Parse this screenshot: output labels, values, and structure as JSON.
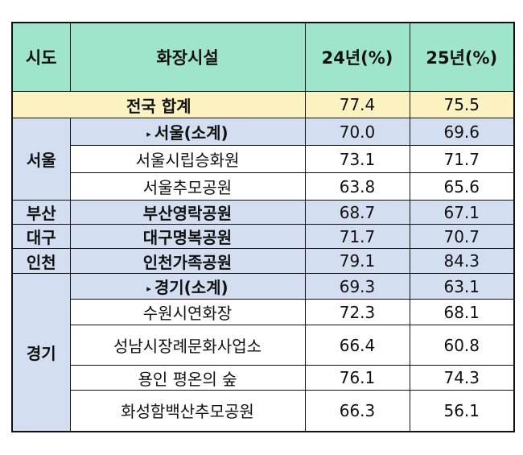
{
  "headers": {
    "region": "시도",
    "facility": "화장시설",
    "y24": "24년(%)",
    "y25": "25년(%)"
  },
  "total": {
    "label": "전국 합계",
    "y24": "77.4",
    "y25": "75.5"
  },
  "regions": {
    "seoul": {
      "name": "서울",
      "subtotal": {
        "label": "서울(소계)",
        "y24": "70.0",
        "y25": "69.6"
      },
      "rows": [
        {
          "label": "서울시립승화원",
          "y24": "73.1",
          "y25": "71.7"
        },
        {
          "label": "서울추모공원",
          "y24": "63.8",
          "y25": "65.6"
        }
      ]
    },
    "busan": {
      "name": "부산",
      "label": "부산영락공원",
      "y24": "68.7",
      "y25": "67.1"
    },
    "daegu": {
      "name": "대구",
      "label": "대구명복공원",
      "y24": "71.7",
      "y25": "70.7"
    },
    "incheon": {
      "name": "인천",
      "label": "인천가족공원",
      "y24": "79.1",
      "y25": "84.3"
    },
    "gyeonggi": {
      "name": "경기",
      "subtotal": {
        "label": "경기(소계)",
        "y24": "69.3",
        "y25": "63.1"
      },
      "rows": [
        {
          "label": "수원시연화장",
          "y24": "72.3",
          "y25": "68.1"
        },
        {
          "label": "성남시장례문화사업소",
          "y24": "66.4",
          "y25": "60.8"
        },
        {
          "label": "용인 평온의 숲",
          "y24": "76.1",
          "y25": "74.3"
        },
        {
          "label": "화성함백산추모공원",
          "y24": "66.3",
          "y25": "56.1"
        }
      ]
    }
  },
  "colors": {
    "header": "#9fe5c9",
    "total": "#fdf2c2",
    "subtotal": "#d3dff0"
  },
  "icons": {
    "subtotal_marker": "triangle-right-icon"
  }
}
